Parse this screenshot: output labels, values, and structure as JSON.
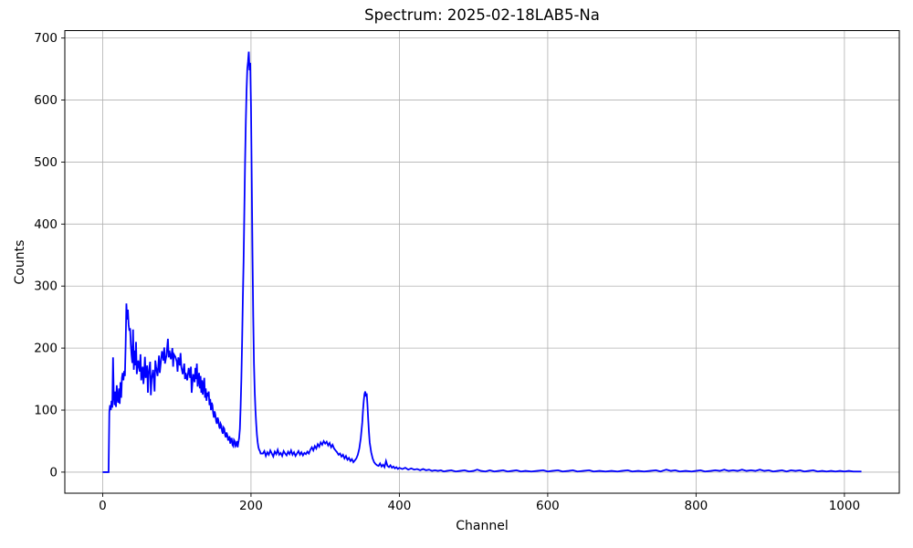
{
  "chart_data": {
    "type": "line",
    "title": "Spectrum: 2025-02-18LAB5-Na",
    "xlabel": "Channel",
    "ylabel": "Counts",
    "xlim": [
      -51,
      1074
    ],
    "ylim": [
      -34,
      712
    ],
    "xticks": [
      0,
      200,
      400,
      600,
      800,
      1000
    ],
    "yticks": [
      0,
      100,
      200,
      300,
      400,
      500,
      600,
      700
    ],
    "grid": true,
    "legend": "none",
    "line_color": "#0000ff",
    "grid_color": "#b0b0b0",
    "background_color": "#ffffff",
    "points": [
      [
        0,
        0
      ],
      [
        8,
        0
      ],
      [
        9,
        97
      ],
      [
        10,
        108
      ],
      [
        11,
        100
      ],
      [
        12,
        115
      ],
      [
        13,
        104
      ],
      [
        14,
        185
      ],
      [
        15,
        122
      ],
      [
        16,
        108
      ],
      [
        17,
        130
      ],
      [
        18,
        105
      ],
      [
        19,
        140
      ],
      [
        20,
        118
      ],
      [
        21,
        112
      ],
      [
        22,
        135
      ],
      [
        23,
        110
      ],
      [
        24,
        145
      ],
      [
        25,
        120
      ],
      [
        26,
        152
      ],
      [
        27,
        160
      ],
      [
        28,
        148
      ],
      [
        29,
        163
      ],
      [
        30,
        155
      ],
      [
        31,
        205
      ],
      [
        32,
        272
      ],
      [
        33,
        246
      ],
      [
        34,
        262
      ],
      [
        35,
        238
      ],
      [
        36,
        228
      ],
      [
        37,
        232
      ],
      [
        38,
        205
      ],
      [
        39,
        188
      ],
      [
        40,
        176
      ],
      [
        41,
        230
      ],
      [
        42,
        165
      ],
      [
        43,
        196
      ],
      [
        44,
        172
      ],
      [
        45,
        210
      ],
      [
        46,
        158
      ],
      [
        48,
        180
      ],
      [
        50,
        162
      ],
      [
        51,
        190
      ],
      [
        52,
        148
      ],
      [
        54,
        170
      ],
      [
        55,
        142
      ],
      [
        56,
        160
      ],
      [
        57,
        186
      ],
      [
        58,
        152
      ],
      [
        60,
        172
      ],
      [
        61,
        128
      ],
      [
        62,
        158
      ],
      [
        64,
        178
      ],
      [
        65,
        124
      ],
      [
        66,
        150
      ],
      [
        68,
        165
      ],
      [
        70,
        130
      ],
      [
        71,
        180
      ],
      [
        72,
        170
      ],
      [
        74,
        155
      ],
      [
        76,
        188
      ],
      [
        77,
        160
      ],
      [
        78,
        172
      ],
      [
        80,
        195
      ],
      [
        82,
        180
      ],
      [
        83,
        201
      ],
      [
        84,
        175
      ],
      [
        86,
        188
      ],
      [
        88,
        215
      ],
      [
        89,
        185
      ],
      [
        90,
        196
      ],
      [
        92,
        182
      ],
      [
        94,
        200
      ],
      [
        95,
        170
      ],
      [
        96,
        190
      ],
      [
        98,
        186
      ],
      [
        100,
        178
      ],
      [
        101,
        162
      ],
      [
        102,
        185
      ],
      [
        104,
        172
      ],
      [
        105,
        192
      ],
      [
        106,
        170
      ],
      [
        108,
        158
      ],
      [
        110,
        175
      ],
      [
        111,
        150
      ],
      [
        112,
        160
      ],
      [
        114,
        148
      ],
      [
        116,
        168
      ],
      [
        118,
        152
      ],
      [
        119,
        170
      ],
      [
        120,
        128
      ],
      [
        122,
        158
      ],
      [
        124,
        145
      ],
      [
        125,
        168
      ],
      [
        126,
        150
      ],
      [
        127,
        175
      ],
      [
        128,
        138
      ],
      [
        130,
        160
      ],
      [
        131,
        135
      ],
      [
        132,
        155
      ],
      [
        133,
        128
      ],
      [
        134,
        148
      ],
      [
        135,
        125
      ],
      [
        136,
        140
      ],
      [
        137,
        152
      ],
      [
        138,
        120
      ],
      [
        139,
        135
      ],
      [
        140,
        115
      ],
      [
        141,
        128
      ],
      [
        142,
        122
      ],
      [
        143,
        130
      ],
      [
        144,
        108
      ],
      [
        145,
        118
      ],
      [
        146,
        100
      ],
      [
        147,
        112
      ],
      [
        148,
        108
      ],
      [
        149,
        95
      ],
      [
        150,
        88
      ],
      [
        151,
        98
      ],
      [
        152,
        92
      ],
      [
        153,
        82
      ],
      [
        154,
        78
      ],
      [
        155,
        88
      ],
      [
        156,
        84
      ],
      [
        157,
        74
      ],
      [
        158,
        70
      ],
      [
        159,
        78
      ],
      [
        160,
        75
      ],
      [
        161,
        66
      ],
      [
        162,
        62
      ],
      [
        163,
        72
      ],
      [
        164,
        70
      ],
      [
        165,
        60
      ],
      [
        166,
        56
      ],
      [
        167,
        64
      ],
      [
        168,
        60
      ],
      [
        169,
        52
      ],
      [
        170,
        52
      ],
      [
        171,
        58
      ],
      [
        172,
        46
      ],
      [
        173,
        54
      ],
      [
        174,
        54
      ],
      [
        175,
        44
      ],
      [
        176,
        42
      ],
      [
        177,
        52
      ],
      [
        178,
        50
      ],
      [
        179,
        42
      ],
      [
        180,
        44
      ],
      [
        181,
        50
      ],
      [
        182,
        40
      ],
      [
        183,
        48
      ],
      [
        184,
        55
      ],
      [
        185,
        70
      ],
      [
        186,
        105
      ],
      [
        187,
        150
      ],
      [
        188,
        210
      ],
      [
        189,
        280
      ],
      [
        190,
        340
      ],
      [
        191,
        420
      ],
      [
        192,
        500
      ],
      [
        193,
        565
      ],
      [
        194,
        615
      ],
      [
        195,
        650
      ],
      [
        196,
        662
      ],
      [
        197,
        678
      ],
      [
        198,
        648
      ],
      [
        199,
        660
      ],
      [
        200,
        590
      ],
      [
        201,
        470
      ],
      [
        202,
        350
      ],
      [
        203,
        250
      ],
      [
        204,
        175
      ],
      [
        205,
        130
      ],
      [
        206,
        100
      ],
      [
        207,
        78
      ],
      [
        208,
        60
      ],
      [
        209,
        48
      ],
      [
        210,
        40
      ],
      [
        211,
        36
      ],
      [
        212,
        34
      ],
      [
        213,
        30
      ],
      [
        214,
        30
      ],
      [
        216,
        30
      ],
      [
        218,
        34
      ],
      [
        220,
        26
      ],
      [
        222,
        32
      ],
      [
        224,
        28
      ],
      [
        226,
        35
      ],
      [
        228,
        30
      ],
      [
        230,
        25
      ],
      [
        232,
        33
      ],
      [
        234,
        29
      ],
      [
        236,
        36
      ],
      [
        238,
        28
      ],
      [
        240,
        31
      ],
      [
        242,
        26
      ],
      [
        244,
        34
      ],
      [
        246,
        30
      ],
      [
        248,
        27
      ],
      [
        250,
        33
      ],
      [
        252,
        29
      ],
      [
        254,
        35
      ],
      [
        256,
        28
      ],
      [
        258,
        32
      ],
      [
        260,
        26
      ],
      [
        262,
        30
      ],
      [
        264,
        34
      ],
      [
        266,
        28
      ],
      [
        268,
        32
      ],
      [
        270,
        27
      ],
      [
        272,
        31
      ],
      [
        274,
        29
      ],
      [
        276,
        33
      ],
      [
        278,
        30
      ],
      [
        280,
        36
      ],
      [
        282,
        40
      ],
      [
        284,
        35
      ],
      [
        286,
        42
      ],
      [
        288,
        38
      ],
      [
        290,
        45
      ],
      [
        292,
        41
      ],
      [
        294,
        48
      ],
      [
        296,
        44
      ],
      [
        298,
        50
      ],
      [
        300,
        46
      ],
      [
        302,
        49
      ],
      [
        304,
        43
      ],
      [
        306,
        47
      ],
      [
        308,
        40
      ],
      [
        310,
        44
      ],
      [
        312,
        38
      ],
      [
        314,
        35
      ],
      [
        316,
        32
      ],
      [
        318,
        28
      ],
      [
        320,
        30
      ],
      [
        322,
        25
      ],
      [
        324,
        28
      ],
      [
        326,
        22
      ],
      [
        328,
        26
      ],
      [
        330,
        20
      ],
      [
        332,
        23
      ],
      [
        334,
        18
      ],
      [
        336,
        21
      ],
      [
        338,
        16
      ],
      [
        340,
        19
      ],
      [
        342,
        22
      ],
      [
        344,
        28
      ],
      [
        346,
        38
      ],
      [
        348,
        55
      ],
      [
        350,
        80
      ],
      [
        351,
        100
      ],
      [
        352,
        115
      ],
      [
        353,
        126
      ],
      [
        354,
        130
      ],
      [
        355,
        122
      ],
      [
        356,
        127
      ],
      [
        357,
        108
      ],
      [
        358,
        85
      ],
      [
        359,
        65
      ],
      [
        360,
        48
      ],
      [
        362,
        32
      ],
      [
        364,
        22
      ],
      [
        366,
        16
      ],
      [
        368,
        13
      ],
      [
        370,
        11
      ],
      [
        372,
        10
      ],
      [
        374,
        14
      ],
      [
        376,
        9
      ],
      [
        378,
        12
      ],
      [
        380,
        8
      ],
      [
        382,
        18
      ],
      [
        384,
        10
      ],
      [
        386,
        8
      ],
      [
        388,
        11
      ],
      [
        390,
        7
      ],
      [
        392,
        9
      ],
      [
        394,
        6
      ],
      [
        396,
        8
      ],
      [
        398,
        5
      ],
      [
        400,
        7
      ],
      [
        404,
        5
      ],
      [
        408,
        7
      ],
      [
        412,
        4
      ],
      [
        416,
        6
      ],
      [
        420,
        4
      ],
      [
        424,
        5
      ],
      [
        428,
        3
      ],
      [
        432,
        5
      ],
      [
        436,
        3
      ],
      [
        440,
        4
      ],
      [
        444,
        2
      ],
      [
        448,
        3
      ],
      [
        452,
        2
      ],
      [
        456,
        3
      ],
      [
        460,
        1
      ],
      [
        464,
        2
      ],
      [
        470,
        3
      ],
      [
        476,
        1
      ],
      [
        482,
        2
      ],
      [
        488,
        3
      ],
      [
        494,
        1
      ],
      [
        500,
        2
      ],
      [
        505,
        4
      ],
      [
        510,
        2
      ],
      [
        516,
        1
      ],
      [
        522,
        3
      ],
      [
        528,
        1
      ],
      [
        534,
        2
      ],
      [
        540,
        3
      ],
      [
        546,
        1
      ],
      [
        552,
        2
      ],
      [
        558,
        3
      ],
      [
        564,
        1
      ],
      [
        570,
        2
      ],
      [
        578,
        1
      ],
      [
        586,
        2
      ],
      [
        594,
        3
      ],
      [
        600,
        1
      ],
      [
        606,
        2
      ],
      [
        614,
        3
      ],
      [
        620,
        1
      ],
      [
        628,
        2
      ],
      [
        634,
        3
      ],
      [
        640,
        1
      ],
      [
        648,
        2
      ],
      [
        656,
        3
      ],
      [
        662,
        1
      ],
      [
        670,
        2
      ],
      [
        678,
        1
      ],
      [
        686,
        2
      ],
      [
        694,
        1
      ],
      [
        700,
        2
      ],
      [
        708,
        3
      ],
      [
        714,
        1
      ],
      [
        722,
        2
      ],
      [
        730,
        1
      ],
      [
        738,
        2
      ],
      [
        746,
        3
      ],
      [
        752,
        1
      ],
      [
        760,
        4
      ],
      [
        766,
        2
      ],
      [
        772,
        3
      ],
      [
        778,
        1
      ],
      [
        786,
        2
      ],
      [
        794,
        1
      ],
      [
        800,
        2
      ],
      [
        806,
        3
      ],
      [
        812,
        1
      ],
      [
        820,
        2
      ],
      [
        826,
        3
      ],
      [
        832,
        2
      ],
      [
        838,
        4
      ],
      [
        844,
        2
      ],
      [
        850,
        3
      ],
      [
        856,
        2
      ],
      [
        862,
        4
      ],
      [
        868,
        2
      ],
      [
        874,
        3
      ],
      [
        880,
        2
      ],
      [
        886,
        4
      ],
      [
        892,
        2
      ],
      [
        898,
        3
      ],
      [
        904,
        1
      ],
      [
        910,
        2
      ],
      [
        916,
        3
      ],
      [
        922,
        1
      ],
      [
        928,
        3
      ],
      [
        934,
        2
      ],
      [
        940,
        3
      ],
      [
        946,
        1
      ],
      [
        952,
        2
      ],
      [
        958,
        3
      ],
      [
        964,
        1
      ],
      [
        970,
        2
      ],
      [
        976,
        1
      ],
      [
        982,
        2
      ],
      [
        988,
        1
      ],
      [
        994,
        2
      ],
      [
        1000,
        1
      ],
      [
        1006,
        2
      ],
      [
        1012,
        1
      ],
      [
        1018,
        1
      ],
      [
        1023,
        1
      ]
    ]
  }
}
